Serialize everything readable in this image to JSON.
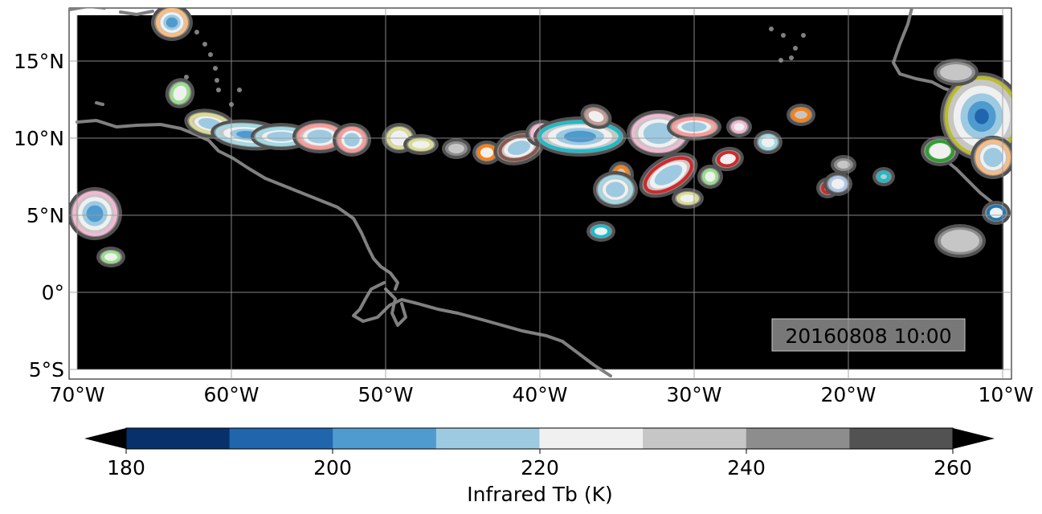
{
  "map": {
    "timestamp": "20160808 10:00",
    "lon_ticks": [
      "70°W",
      "60°W",
      "50°W",
      "40°W",
      "30°W",
      "20°W",
      "10°W"
    ],
    "lat_ticks": [
      "15°N",
      "10°N",
      "5°N",
      "0°",
      "5°S"
    ],
    "extent": {
      "lon_min": -70.5,
      "lon_max": -10.0,
      "lat_min": -5.5,
      "lat_max": 18.5
    },
    "background": "#000000",
    "coastline_color": "#808080",
    "gridlines": true
  },
  "colorbar": {
    "label": "Infrared Tb (K)",
    "ticks": [
      "180",
      "200",
      "220",
      "240",
      "260"
    ],
    "levels": [
      180,
      190,
      200,
      210,
      220,
      230,
      240,
      250,
      260
    ],
    "colors": [
      "#08306b",
      "#2166ac",
      "#4f9bd0",
      "#9ecae1",
      "#f0f0f0",
      "#c6c6c6",
      "#8d8d8d",
      "#525252"
    ],
    "extend_low_color": "#000000",
    "extend_high_color": "#000000"
  },
  "track_colors": [
    "#e377c2",
    "#17becf",
    "#ff9896",
    "#bcbd22",
    "#dbdb8d",
    "#ff7f0e",
    "#8c564b",
    "#d62728",
    "#98df8a",
    "#2ca02c",
    "#aec7e8",
    "#f7b6d2",
    "#9edae5",
    "#ffbb78",
    "#1f77b4",
    "#c49c94"
  ]
}
